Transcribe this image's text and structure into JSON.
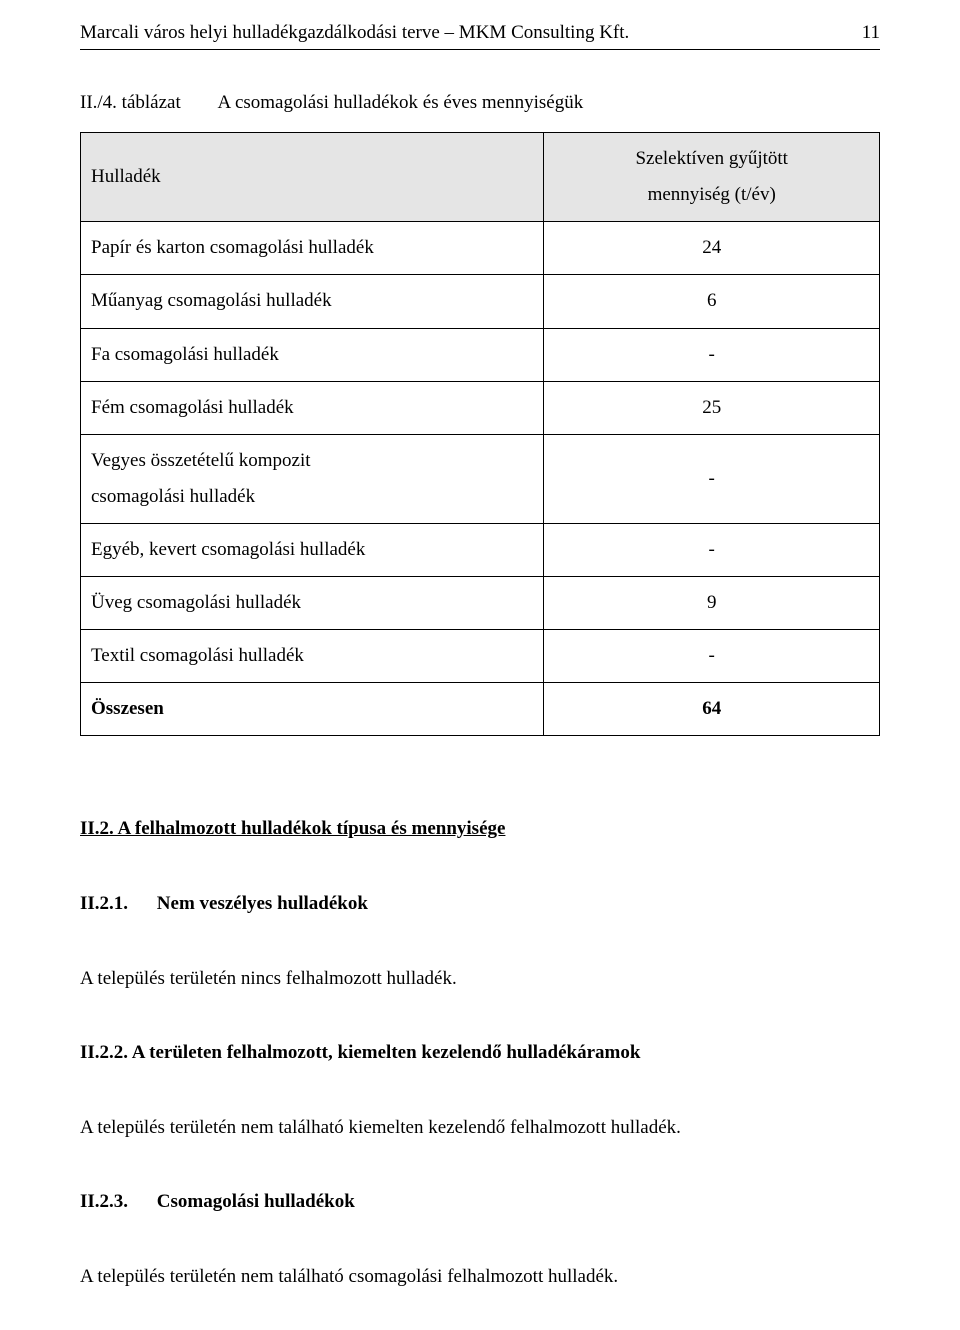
{
  "header": {
    "left": "Marcali város helyi hulladékgazdálkodási terve – MKM Consulting Kft.",
    "page_number": "11"
  },
  "table_caption": {
    "number": "II./4. táblázat",
    "title": "A csomagolási hulladékok és éves mennyiségük"
  },
  "table": {
    "header_left": "Hulladék",
    "header_right_line1": "Szelektíven gyűjtött",
    "header_right_line2": "mennyiség (t/év)",
    "col_widths": [
      "58%",
      "42%"
    ],
    "header_bg": "#e5e5e5",
    "border_color": "#000000",
    "rows": [
      {
        "label": "Papír és karton csomagolási hulladék",
        "value": "24",
        "bold": false
      },
      {
        "label": "Műanyag csomagolási hulladék",
        "value": "6",
        "bold": false
      },
      {
        "label": "Fa csomagolási hulladék",
        "value": "-",
        "bold": false
      },
      {
        "label": "Fém csomagolási hulladék",
        "value": "25",
        "bold": false
      },
      {
        "label": "Vegyes összetételű kompozit\ncsomagolási hulladék",
        "value": "-",
        "bold": false
      },
      {
        "label": "Egyéb, kevert csomagolási hulladék",
        "value": "-",
        "bold": false
      },
      {
        "label": "Üveg csomagolási hulladék",
        "value": "9",
        "bold": false
      },
      {
        "label": "Textil csomagolási hulladék",
        "value": "-",
        "bold": false
      },
      {
        "label": "Összesen",
        "value": "64",
        "bold": true
      }
    ]
  },
  "section_heading": "II.2.  A felhalmozott hulladékok típusa és mennyisége",
  "sub1": {
    "num": "II.2.1.",
    "txt": "Nem veszélyes hulladékok"
  },
  "para1": "A település területén nincs felhalmozott hulladék.",
  "sub2": {
    "full": "II.2.2. A területen felhalmozott, kiemelten kezelendő hulladékáramok"
  },
  "para2": "A település területén nem található kiemelten kezelendő felhalmozott hulladék.",
  "sub3": {
    "num": "II.2.3.",
    "txt": "Csomagolási hulladékok"
  },
  "para3": "A település területén nem található csomagolási felhalmozott hulladék."
}
